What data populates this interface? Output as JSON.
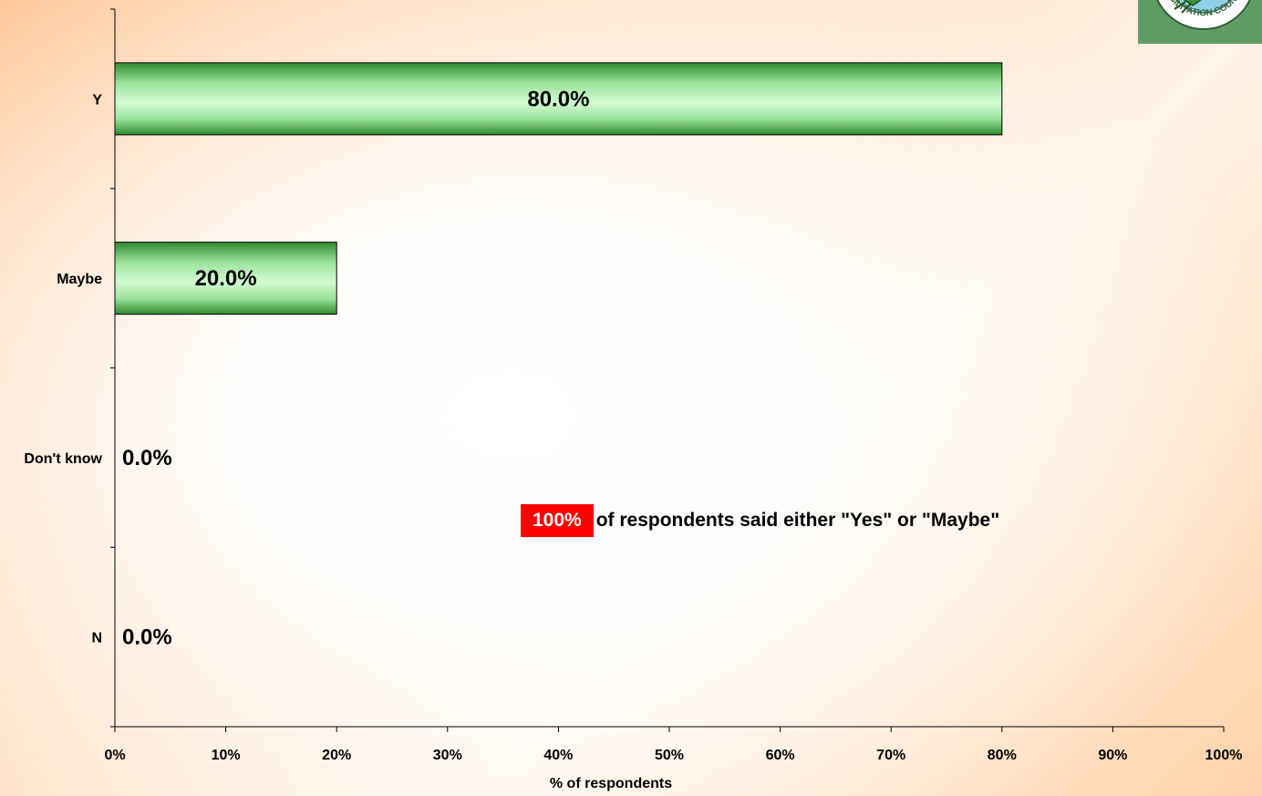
{
  "chart_data": {
    "type": "bar",
    "orientation": "horizontal",
    "categories": [
      "Y",
      "Maybe",
      "Don't know",
      "N"
    ],
    "values": [
      80.0,
      20.0,
      0.0,
      0.0
    ],
    "data_labels": [
      "80.0%",
      "20.0%",
      "0.0%",
      "0.0%"
    ],
    "xlabel": "% of respondents",
    "ylabel": "",
    "xlim": [
      0,
      100
    ],
    "xticks": [
      "0%",
      "10%",
      "20%",
      "30%",
      "40%",
      "50%",
      "60%",
      "70%",
      "80%",
      "90%",
      "100%"
    ],
    "grid": false,
    "legend": "none"
  },
  "annotation": {
    "highlight": "100%",
    "text": "of respondents said either \"Yes\" or \"Maybe\""
  },
  "logo": {
    "text": "HABILITATION COUNCIL",
    "icon": "bird-emblem-icon"
  },
  "colors": {
    "bar_dark": "#2e8b2e",
    "bar_light": "#c8f7c8",
    "highlight": "#ff0000"
  }
}
